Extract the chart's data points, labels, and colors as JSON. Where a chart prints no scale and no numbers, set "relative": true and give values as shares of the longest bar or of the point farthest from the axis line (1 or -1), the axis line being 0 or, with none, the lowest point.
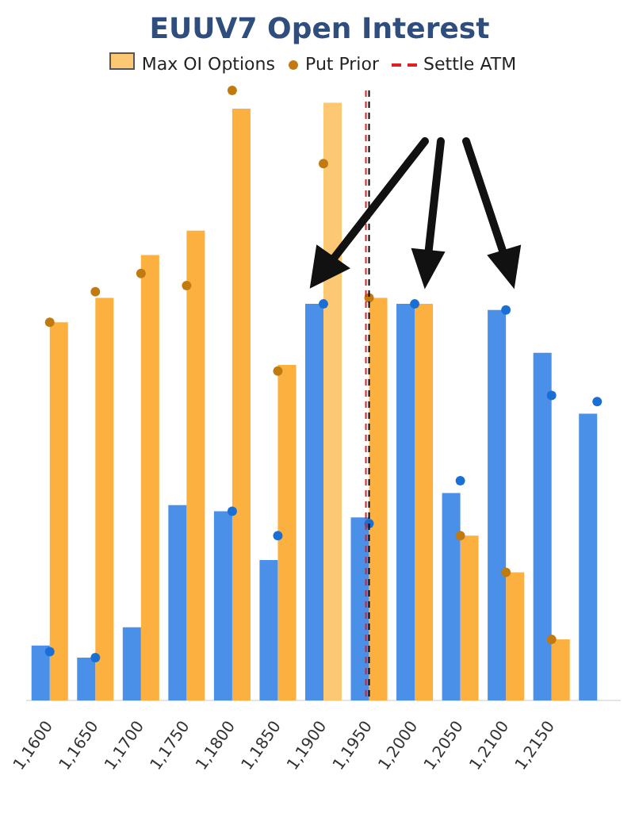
{
  "chart_data": {
    "type": "bar",
    "title": "EUUV7 Open Interest",
    "relative": true,
    "legend": "top",
    "categories": [
      "1,1600",
      "1,1650",
      "1,1700",
      "1,1750",
      "1,1800",
      "1,1850",
      "1,1900",
      "1,1950",
      "1,2000",
      "1,2050",
      "1,2100",
      "1,2150",
      null
    ],
    "series": [
      {
        "color": "#4a8fe8",
        "values": [
          0.09,
          0.07,
          0.12,
          0.32,
          0.31,
          0.23,
          0.65,
          0.3,
          0.65,
          0.34,
          0.64,
          0.57,
          0.47
        ]
      },
      {
        "color": "#fbb040",
        "values": [
          0.62,
          0.66,
          0.73,
          0.77,
          0.97,
          0.55,
          null,
          0.66,
          0.65,
          0.27,
          0.21,
          0.1,
          null
        ]
      },
      {
        "name": "Max OI Options",
        "color": "#fcc874",
        "values": [
          null,
          null,
          null,
          null,
          null,
          null,
          0.98,
          null,
          null,
          null,
          null,
          null,
          null
        ]
      },
      {
        "type": "scatter",
        "color": "#1a6fd6",
        "values": [
          0.08,
          0.07,
          null,
          null,
          0.31,
          0.27,
          0.65,
          0.29,
          0.65,
          0.36,
          0.64,
          0.5,
          0.49
        ]
      },
      {
        "type": "scatter",
        "name": "Put Prior",
        "color": "#c07a10",
        "values": [
          0.62,
          0.67,
          0.7,
          0.68,
          1,
          0.54,
          0.88,
          0.66,
          null,
          0.27,
          0.21,
          0.1,
          null
        ]
      }
    ],
    "ref_lines": [
      {
        "axis": "x",
        "value": "1,1950",
        "label": "Settle ATM",
        "color": "#e02020",
        "line_style": "dashed"
      },
      {
        "axis": "x",
        "value": "1,1950",
        "color": "#000000",
        "line_style": "dashed"
      }
    ]
  }
}
